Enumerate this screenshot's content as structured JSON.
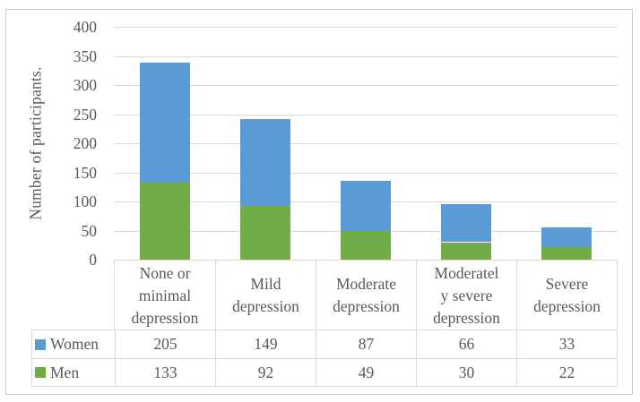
{
  "frame": {
    "background_color": "#ffffff",
    "border_color": "#c9c9c9"
  },
  "chart_data": {
    "type": "bar",
    "stacked": true,
    "title": "",
    "xlabel": "",
    "ylabel": "Number of participants.",
    "categories": [
      "None or minimal depression",
      "Mild depression",
      "Moderate depression",
      "Moderately severe depression",
      "Severe depression"
    ],
    "category_display": [
      "None or\nminimal\ndepression",
      "Mild\ndepression",
      "Moderate\ndepression",
      "Moderatel\ny severe\ndepression",
      "Severe\ndepression"
    ],
    "series": [
      {
        "name": "Women",
        "color": "#5b9bd5",
        "values": [
          205,
          149,
          87,
          66,
          33
        ]
      },
      {
        "name": "Men",
        "color": "#70ad47",
        "values": [
          133,
          92,
          49,
          30,
          22
        ]
      }
    ],
    "stack_order_bottom_to_top": [
      "Men",
      "Women"
    ],
    "ylim": [
      0,
      400
    ],
    "y_ticks": [
      400,
      350,
      300,
      250,
      200,
      150,
      100,
      50,
      0
    ],
    "grid": true,
    "gridline_color": "#d9d9d9",
    "text_color": "#595959",
    "legend_position": "data-table-left"
  }
}
